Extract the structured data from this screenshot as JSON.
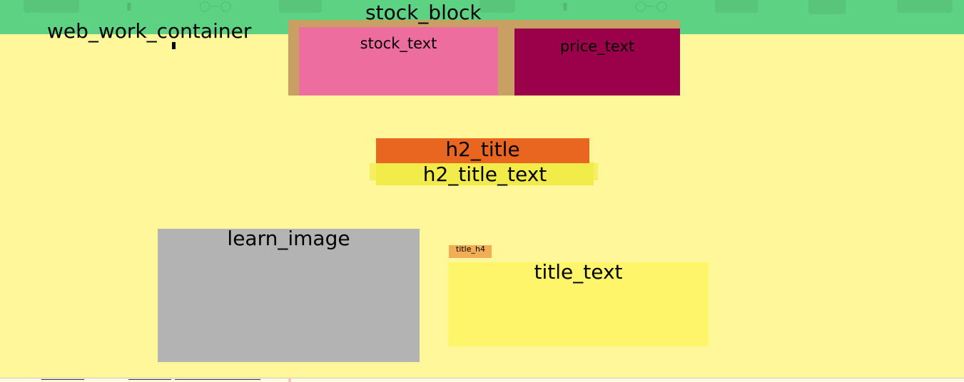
{
  "labels": {
    "web_work_container": "web_work_container",
    "stock_block": "stock_block",
    "stock_text": "stock_text",
    "price_text": "price_text",
    "h2_title": "h2_title",
    "h2_title_text": "h2_title_text",
    "learn_image": "learn_image",
    "title_h4": "title_h4",
    "title_text": "title_text"
  },
  "colors": {
    "top_band": "#5ed283",
    "container": "#fff799",
    "stock_block": "#c8a063",
    "stock_text": "#ed6e9e",
    "price_text": "#9b004b",
    "h2_title": "#e8661f",
    "h2_title_text": "#f2ec4a",
    "learn_image": "#b3b3b3",
    "title_h4": "#f2ae55",
    "title_text": "#fff56b"
  },
  "background_icons": [
    "toggle-icon",
    "link-icon",
    "settings-icon",
    "window-icon"
  ]
}
